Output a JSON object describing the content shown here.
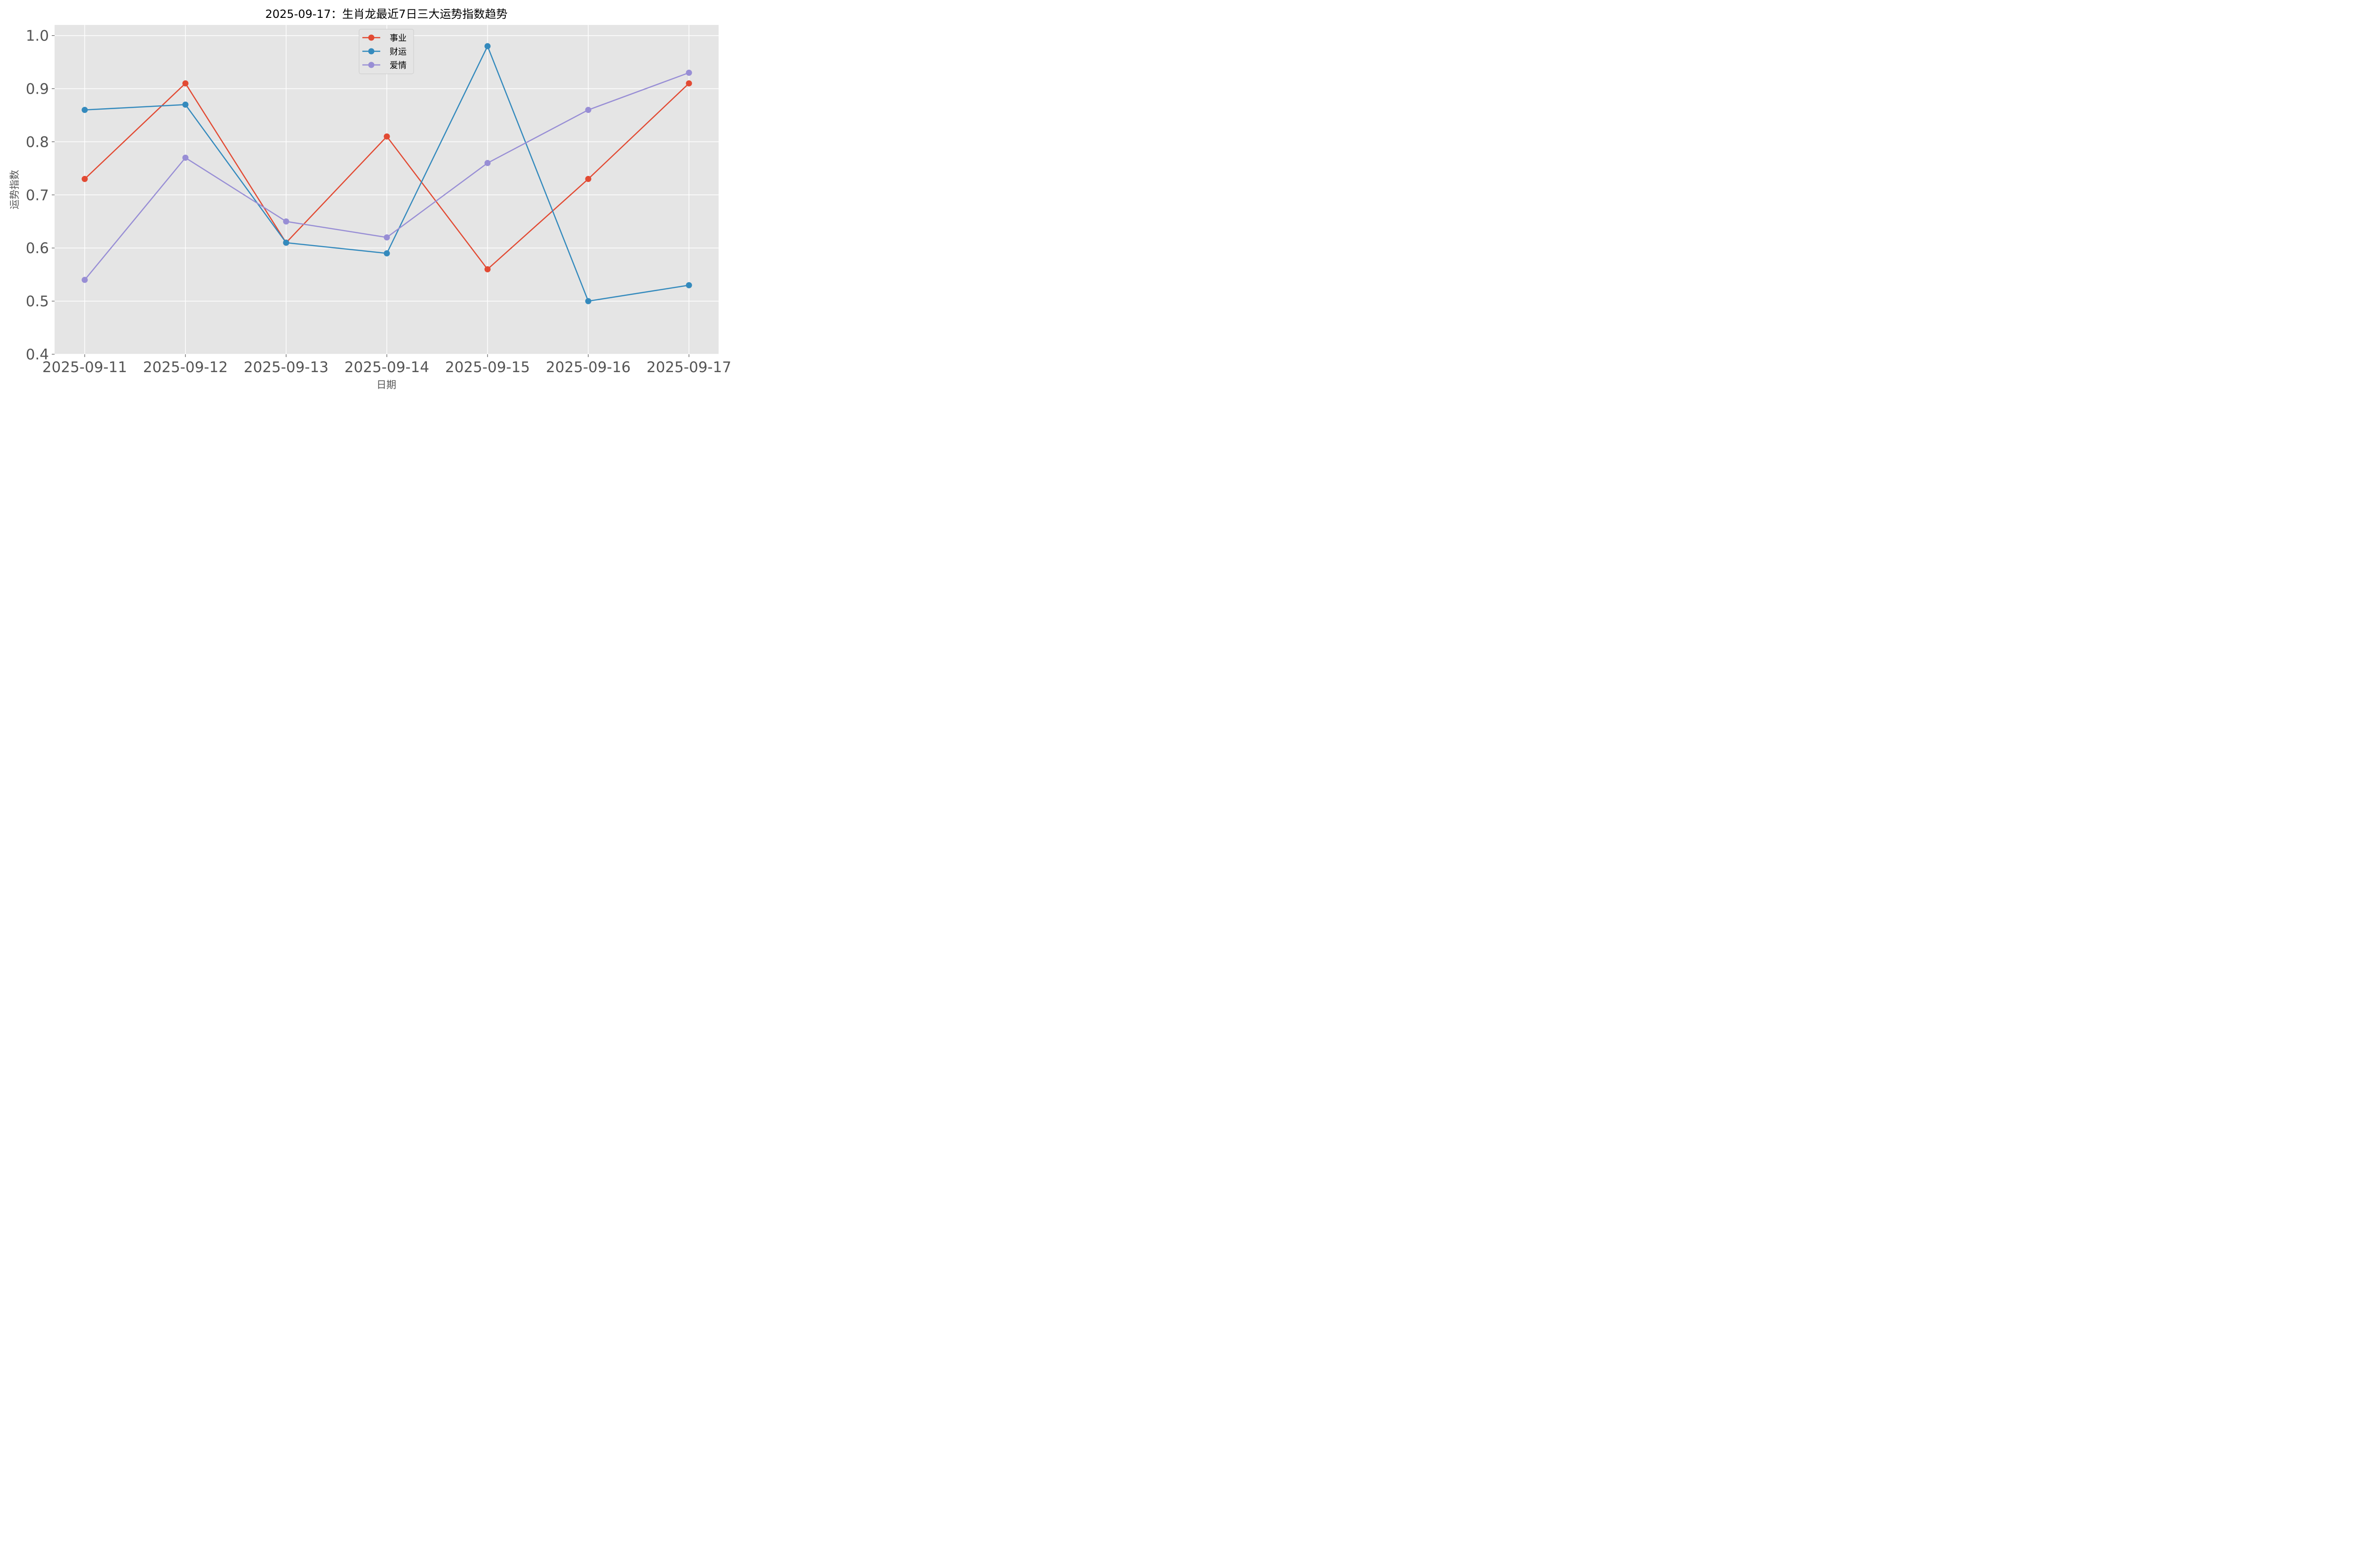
{
  "chart_data": {
    "type": "line",
    "title": "2025-09-17：生肖龙最近7日三大运势指数趋势",
    "xlabel": "日期",
    "ylabel": "运势指数",
    "categories": [
      "2025-09-11",
      "2025-09-12",
      "2025-09-13",
      "2025-09-14",
      "2025-09-15",
      "2025-09-16",
      "2025-09-17"
    ],
    "ylim": [
      0.4,
      1.02
    ],
    "yticks": [
      "0.4",
      "0.5",
      "0.6",
      "0.7",
      "0.8",
      "0.9",
      "1.0"
    ],
    "grid": true,
    "legend_position": "top-center",
    "series": [
      {
        "name": "事业",
        "color": "#E24A33",
        "values": [
          0.73,
          0.91,
          0.61,
          0.81,
          0.56,
          0.73,
          0.91
        ]
      },
      {
        "name": "财运",
        "color": "#348ABD",
        "values": [
          0.86,
          0.87,
          0.61,
          0.59,
          0.98,
          0.5,
          0.53
        ]
      },
      {
        "name": "爱情",
        "color": "#988ED5",
        "values": [
          0.54,
          0.77,
          0.65,
          0.62,
          0.76,
          0.86,
          0.93
        ]
      }
    ]
  }
}
